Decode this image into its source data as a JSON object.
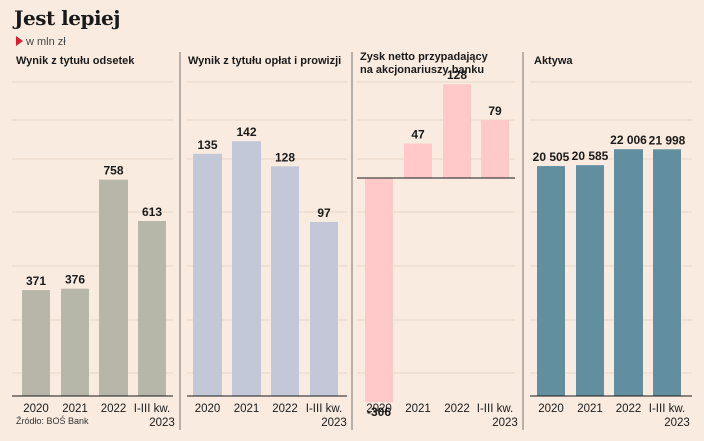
{
  "header": {
    "title": "Jest lepiej",
    "subtitle": "w mln zł",
    "source": "Źródło: BOŚ Bank"
  },
  "colors": {
    "background": "#f9ebdf",
    "accent_arrow": "#d81e2c",
    "grid": "#e7d7c9",
    "divider": "#555555"
  },
  "chart_data": [
    {
      "type": "bar",
      "title": "Wynik z tytułu odsetek",
      "categories": [
        "2020",
        "2021",
        "2022",
        "I-III kw. 2023"
      ],
      "values": [
        371,
        376,
        758,
        613
      ],
      "labels": [
        "371",
        "376",
        "758",
        "613"
      ],
      "color": "#b7b7a9",
      "ylim": [
        0,
        1100
      ]
    },
    {
      "type": "bar",
      "title": "Wynik z tytułu opłat i prowizji",
      "categories": [
        "2020",
        "2021",
        "2022",
        "I-III kw. 2023"
      ],
      "values": [
        135,
        142,
        128,
        97
      ],
      "labels": [
        "135",
        "142",
        "128",
        "97"
      ],
      "color": "#c3c8d8",
      "ylim": [
        0,
        175
      ]
    },
    {
      "type": "bar",
      "title": "Zysk netto przypadający na akcjonariuszy banku",
      "categories": [
        "2020",
        "2021",
        "2022",
        "I-III kw. 2023"
      ],
      "values": [
        -306,
        47,
        128,
        79
      ],
      "labels": [
        "-306",
        "47",
        "128",
        "79"
      ],
      "color": "#ffc9c9",
      "ylim": [
        -306,
        131
      ]
    },
    {
      "type": "bar",
      "title": "Aktywa",
      "categories": [
        "2020",
        "2021",
        "2022",
        "I-III kw. 2023"
      ],
      "values": [
        20505,
        20585,
        22006,
        21998
      ],
      "labels": [
        "20 505",
        "20 585",
        "22 006",
        "21 998"
      ],
      "color": "#628fa0",
      "ylim": [
        0,
        28000
      ]
    }
  ]
}
